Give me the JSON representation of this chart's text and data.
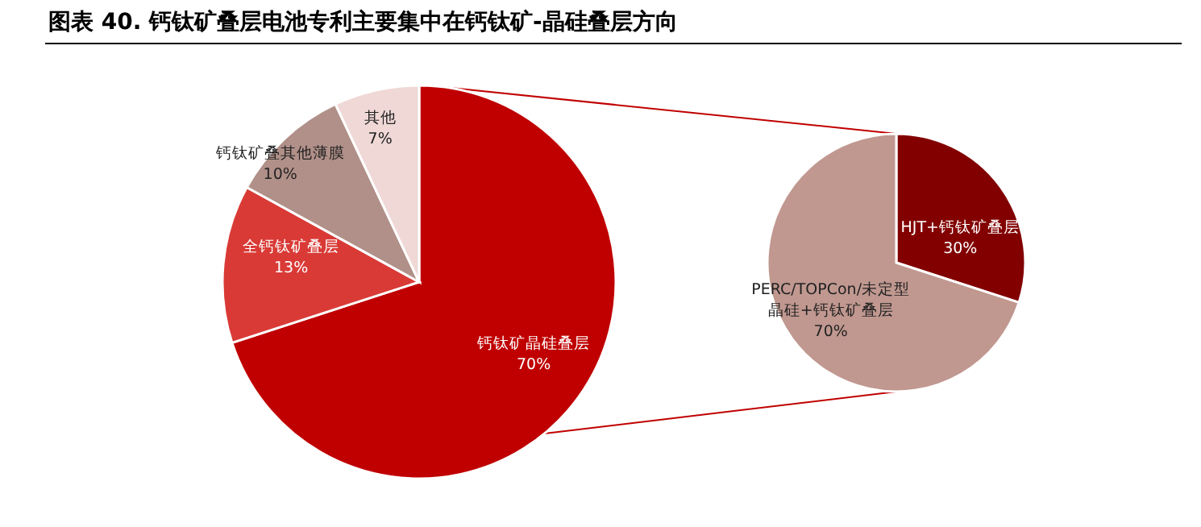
{
  "chart_data": [
    {
      "type": "pie",
      "title": "图表 40. 钙钛矿叠层电池专利主要集中在钙钛矿-晶硅叠层方向",
      "categories": [
        "钙钛矿晶硅叠层",
        "全钙钛矿叠层",
        "钙钛矿叠其他薄膜",
        "其他"
      ],
      "values": [
        70,
        13,
        10,
        7
      ],
      "colors": [
        "#c00000",
        "#d93a36",
        "#b09088",
        "#efd8d6"
      ],
      "value_labels": [
        "70%",
        "13%",
        "10%",
        "7%"
      ]
    },
    {
      "type": "pie",
      "categories": [
        "HJT+钙钛矿叠层",
        "PERC/TOPCon/未定型晶硅+钙钛矿叠层"
      ],
      "values": [
        30,
        70
      ],
      "colors": [
        "#820000",
        "#c09890"
      ],
      "value_labels": [
        "30%",
        "70%"
      ]
    }
  ]
}
